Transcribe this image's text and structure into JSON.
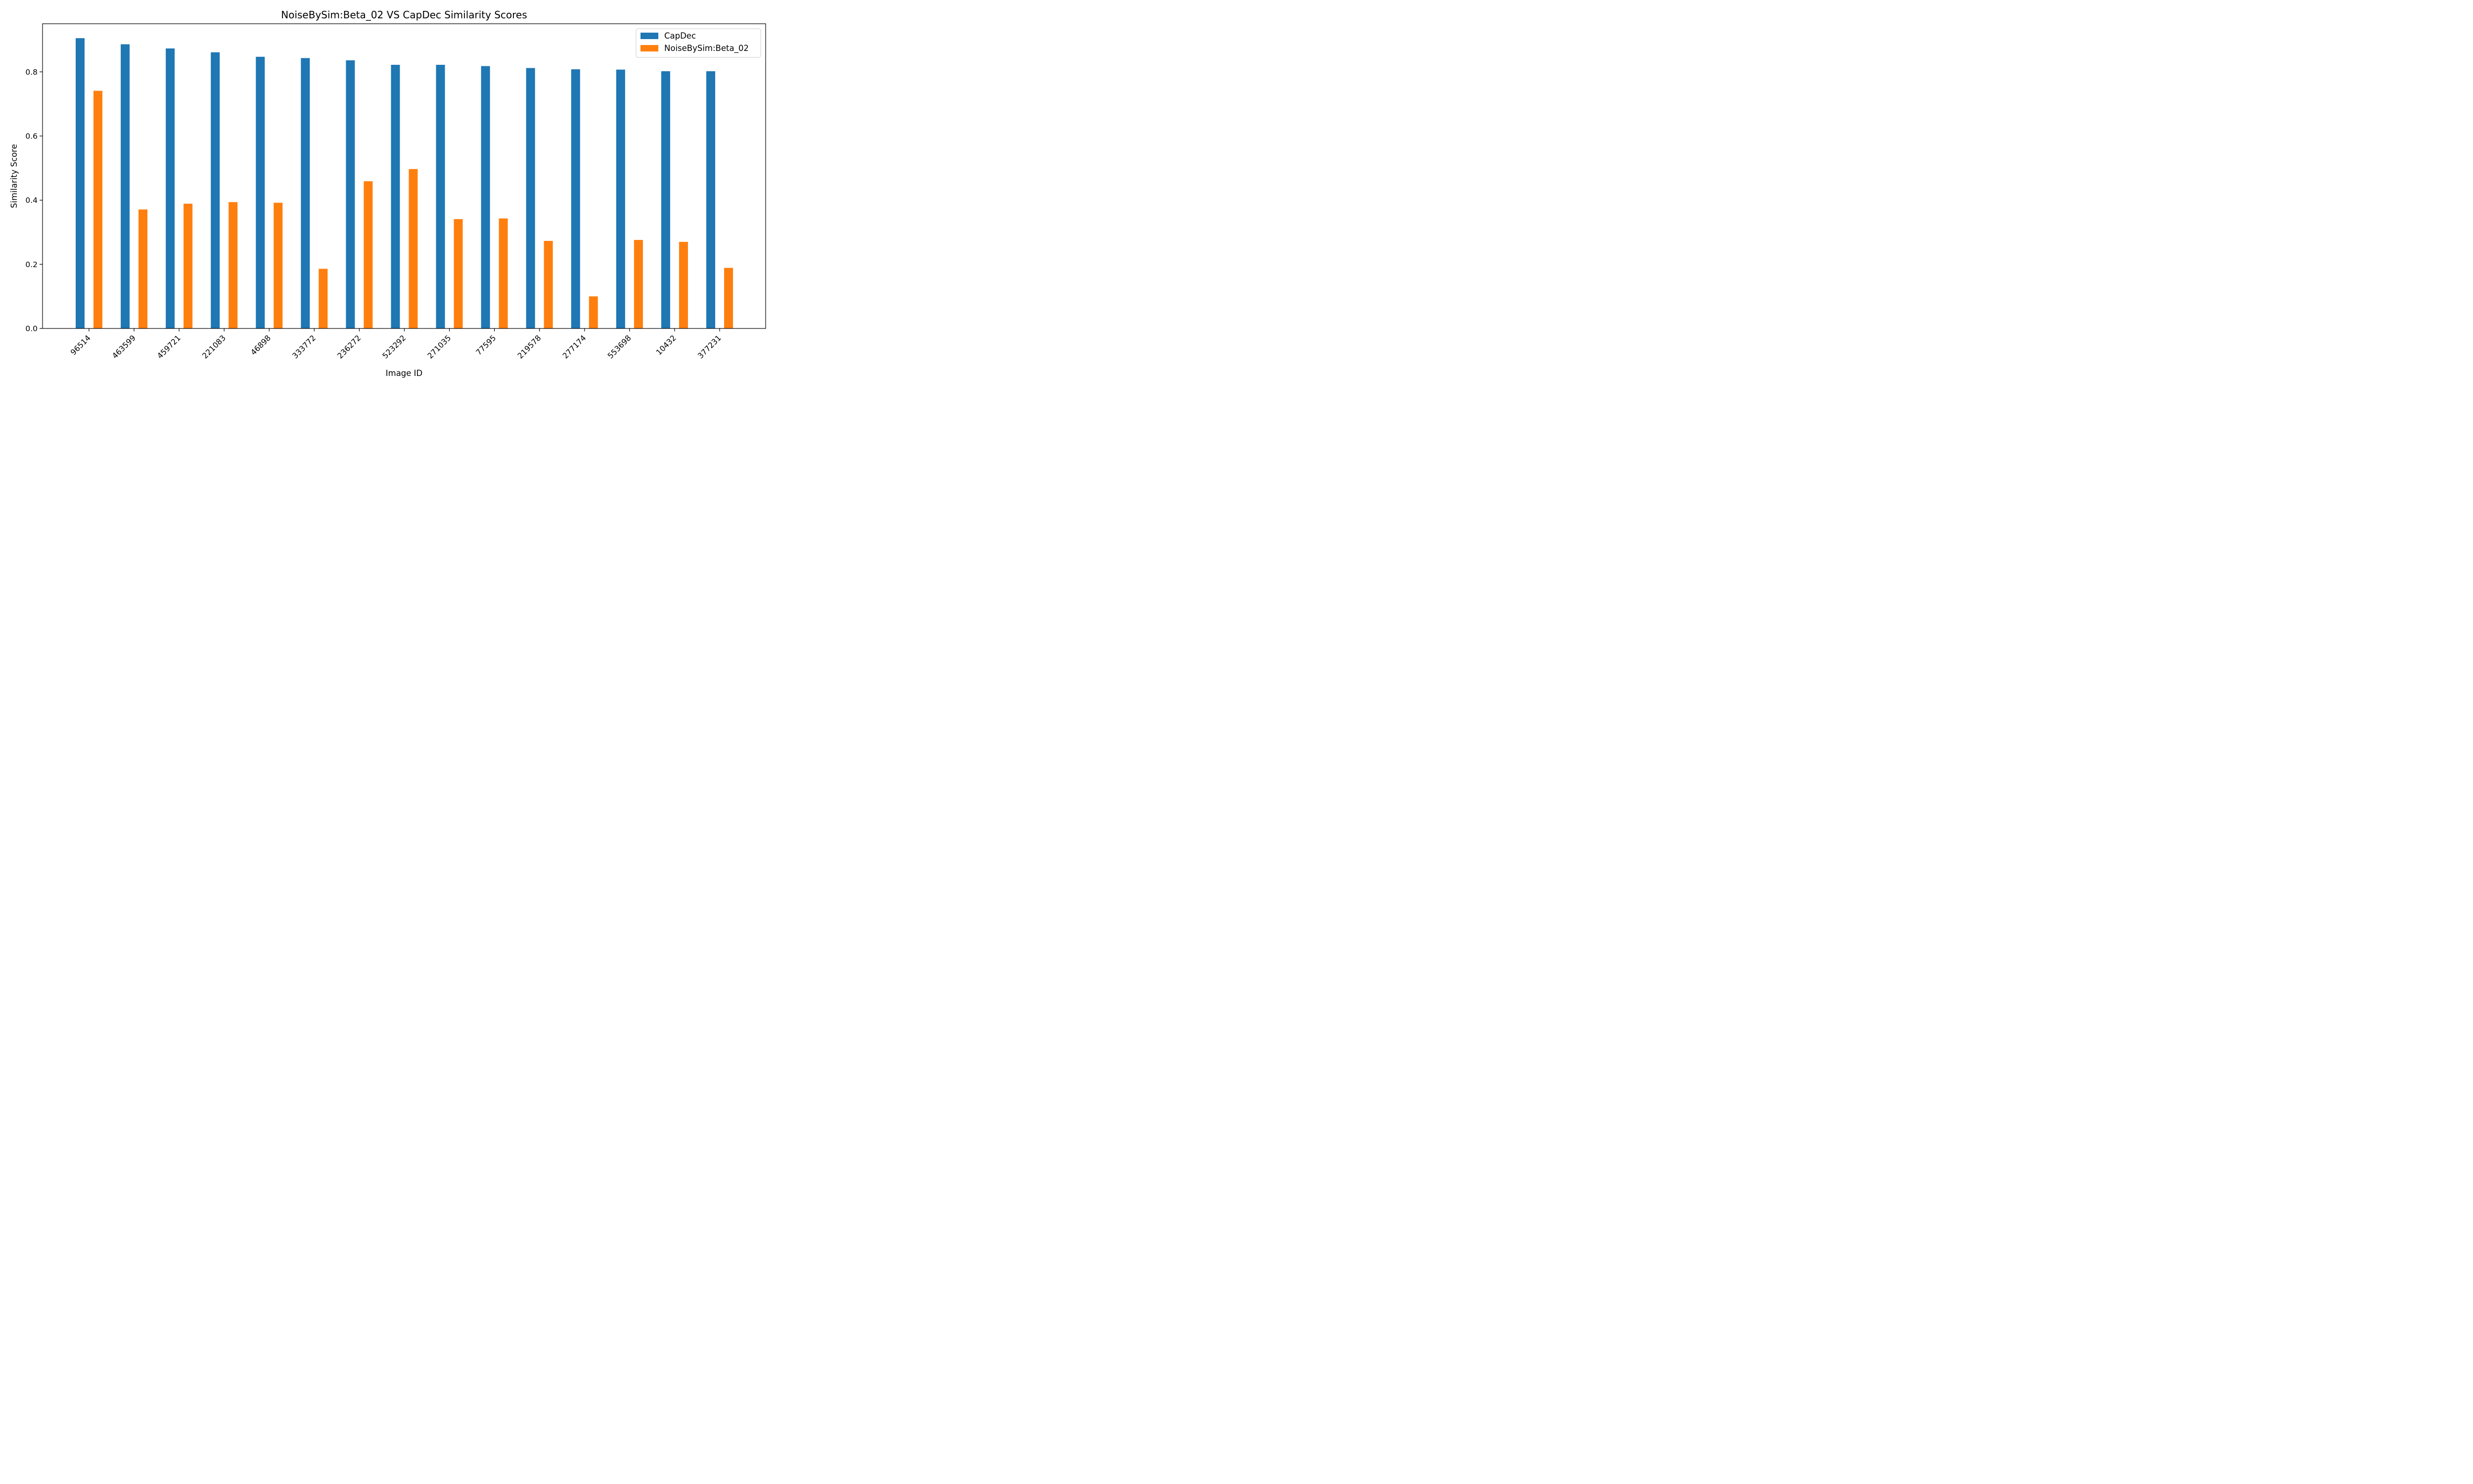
{
  "chart_data": {
    "type": "bar",
    "title": "NoiseBySim:Beta_02 VS CapDec Similarity Scores",
    "xlabel": "Image ID",
    "ylabel": "Similarity Score",
    "categories": [
      "96514",
      "463599",
      "459721",
      "221083",
      "46898",
      "333772",
      "236272",
      "523292",
      "271035",
      "77595",
      "219578",
      "277174",
      "553698",
      "10432",
      "377231"
    ],
    "series": [
      {
        "name": "CapDec",
        "color": "#1f77b4",
        "values": [
          0.905,
          0.886,
          0.873,
          0.861,
          0.847,
          0.843,
          0.836,
          0.822,
          0.822,
          0.818,
          0.812,
          0.808,
          0.807,
          0.802,
          0.802
        ]
      },
      {
        "name": "NoiseBySim:Beta_02",
        "color": "#ff7f0e",
        "values": [
          0.741,
          0.371,
          0.389,
          0.394,
          0.392,
          0.186,
          0.459,
          0.497,
          0.341,
          0.343,
          0.273,
          0.1,
          0.276,
          0.27,
          0.189
        ]
      }
    ],
    "ylim": [
      0,
      0.95
    ],
    "yticks": [
      "0.0",
      "0.2",
      "0.4",
      "0.6",
      "0.8"
    ],
    "grid": false,
    "legend_position": "top-right"
  }
}
